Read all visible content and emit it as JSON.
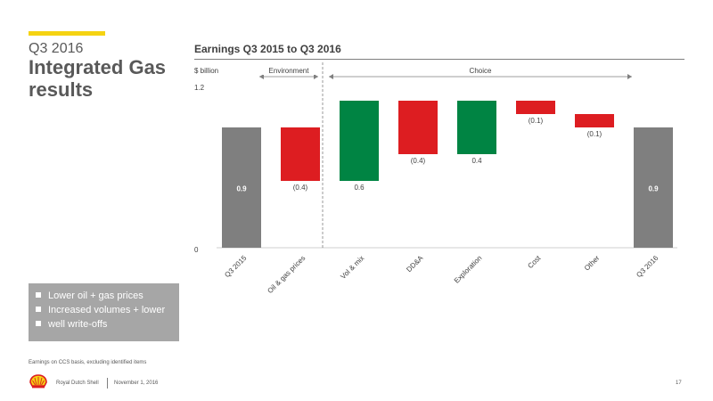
{
  "slide": {
    "subtitle": "Q3 2016",
    "title": "Integrated Gas results",
    "chart_title": "Earnings Q3 2015 to Q3 2016"
  },
  "chart_data": {
    "type": "waterfall",
    "title": "Earnings Q3 2015 to Q3 2016",
    "ylabel": "$ billion",
    "ylim": [
      0,
      1.2
    ],
    "yticks": [
      "0",
      "1.2"
    ],
    "categories": [
      "Q3 2015",
      "Oil & gas prices",
      "Vol & mix",
      "DD&A",
      "Exploration",
      "Cost",
      "Other",
      "Q3 2016"
    ],
    "steps": [
      {
        "category": "Q3 2015",
        "kind": "total",
        "value": 0.9,
        "label": "0.9",
        "color": "#7f7f7f"
      },
      {
        "category": "Oil & gas prices",
        "kind": "delta",
        "value": -0.4,
        "label": "(0.4)",
        "color": "#dd1d21"
      },
      {
        "category": "Vol & mix",
        "kind": "delta",
        "value": 0.6,
        "label": "0.6",
        "color": "#008443"
      },
      {
        "category": "DD&A",
        "kind": "delta",
        "value": -0.4,
        "label": "(0.4)",
        "color": "#dd1d21"
      },
      {
        "category": "Exploration",
        "kind": "delta",
        "value": 0.4,
        "label": "0.4",
        "color": "#008443"
      },
      {
        "category": "Cost",
        "kind": "delta",
        "value": -0.1,
        "label": "(0.1)",
        "color": "#dd1d21"
      },
      {
        "category": "Other",
        "kind": "delta",
        "value": -0.1,
        "label": "(0.1)",
        "color": "#dd1d21"
      },
      {
        "category": "Q3 2016",
        "kind": "total",
        "value": 0.9,
        "label": "0.9",
        "color": "#7f7f7f"
      }
    ],
    "groups": [
      {
        "label": "Environment",
        "from": "Oil & gas prices",
        "to": "Oil & gas prices"
      },
      {
        "label": "Choice",
        "from": "Vol & mix",
        "to": "Other"
      }
    ]
  },
  "callout": {
    "bullets": [
      "Lower oil + gas prices",
      "Increased volumes + lower",
      "well write-offs"
    ]
  },
  "footer": {
    "footnote": "Earnings on CCS basis, excluding identified items",
    "company": "Royal Dutch Shell",
    "date": "November 1, 2016",
    "page": "17",
    "logo_icon": "shell-pecten-icon"
  }
}
